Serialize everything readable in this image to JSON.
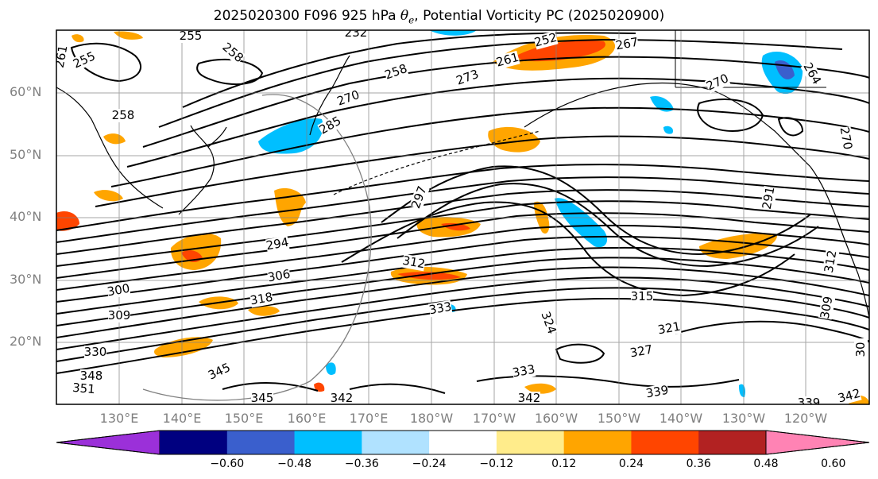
{
  "title": {
    "prefix": "2025020300 F096 925 hPa ",
    "theta_symbol": "θ",
    "theta_sub": "e",
    "suffix": ", Potential Vorticity PC (2025020900)"
  },
  "map": {
    "latitude_labels": [
      "60°N",
      "50°N",
      "40°N",
      "30°N",
      "20°N"
    ],
    "longitude_labels": [
      "130°E",
      "140°E",
      "150°E",
      "160°E",
      "170°E",
      "180°W",
      "170°W",
      "160°W",
      "150°W",
      "140°W",
      "130°W",
      "120°W"
    ],
    "contour_labels": [
      "255",
      "232",
      "252",
      "267",
      "261",
      "255",
      "258",
      "258",
      "261",
      "273",
      "270",
      "264",
      "270",
      "258",
      "270",
      "285",
      "297",
      "291",
      "294",
      "306",
      "312",
      "300",
      "309",
      "318",
      "333",
      "315",
      "324",
      "321",
      "327",
      "330",
      "333",
      "348",
      "351",
      "345",
      "345",
      "342",
      "342",
      "339",
      "339",
      "342",
      "309",
      "312",
      "30"
    ],
    "land_color": "#000000",
    "grid_color": "#808080"
  },
  "colorbar": {
    "colors": [
      "#9b30d9",
      "#000080",
      "#3a5fcd",
      "#00bfff",
      "#b0e2ff",
      "#ffffff",
      "#ffec8b",
      "#ffa500",
      "#ff4500",
      "#b22222",
      "#ff83b4"
    ],
    "tick_labels": [
      "-0.60",
      "-0.48",
      "-0.36",
      "-0.24",
      "-0.12",
      "0.12",
      "0.24",
      "0.36",
      "0.48",
      "0.60"
    ],
    "display_ticks": [
      "−0.60",
      "−0.48",
      "−0.36",
      "−0.24",
      "−0.12",
      "0.12",
      "0.24",
      "0.36",
      "0.48",
      "0.60"
    ]
  }
}
